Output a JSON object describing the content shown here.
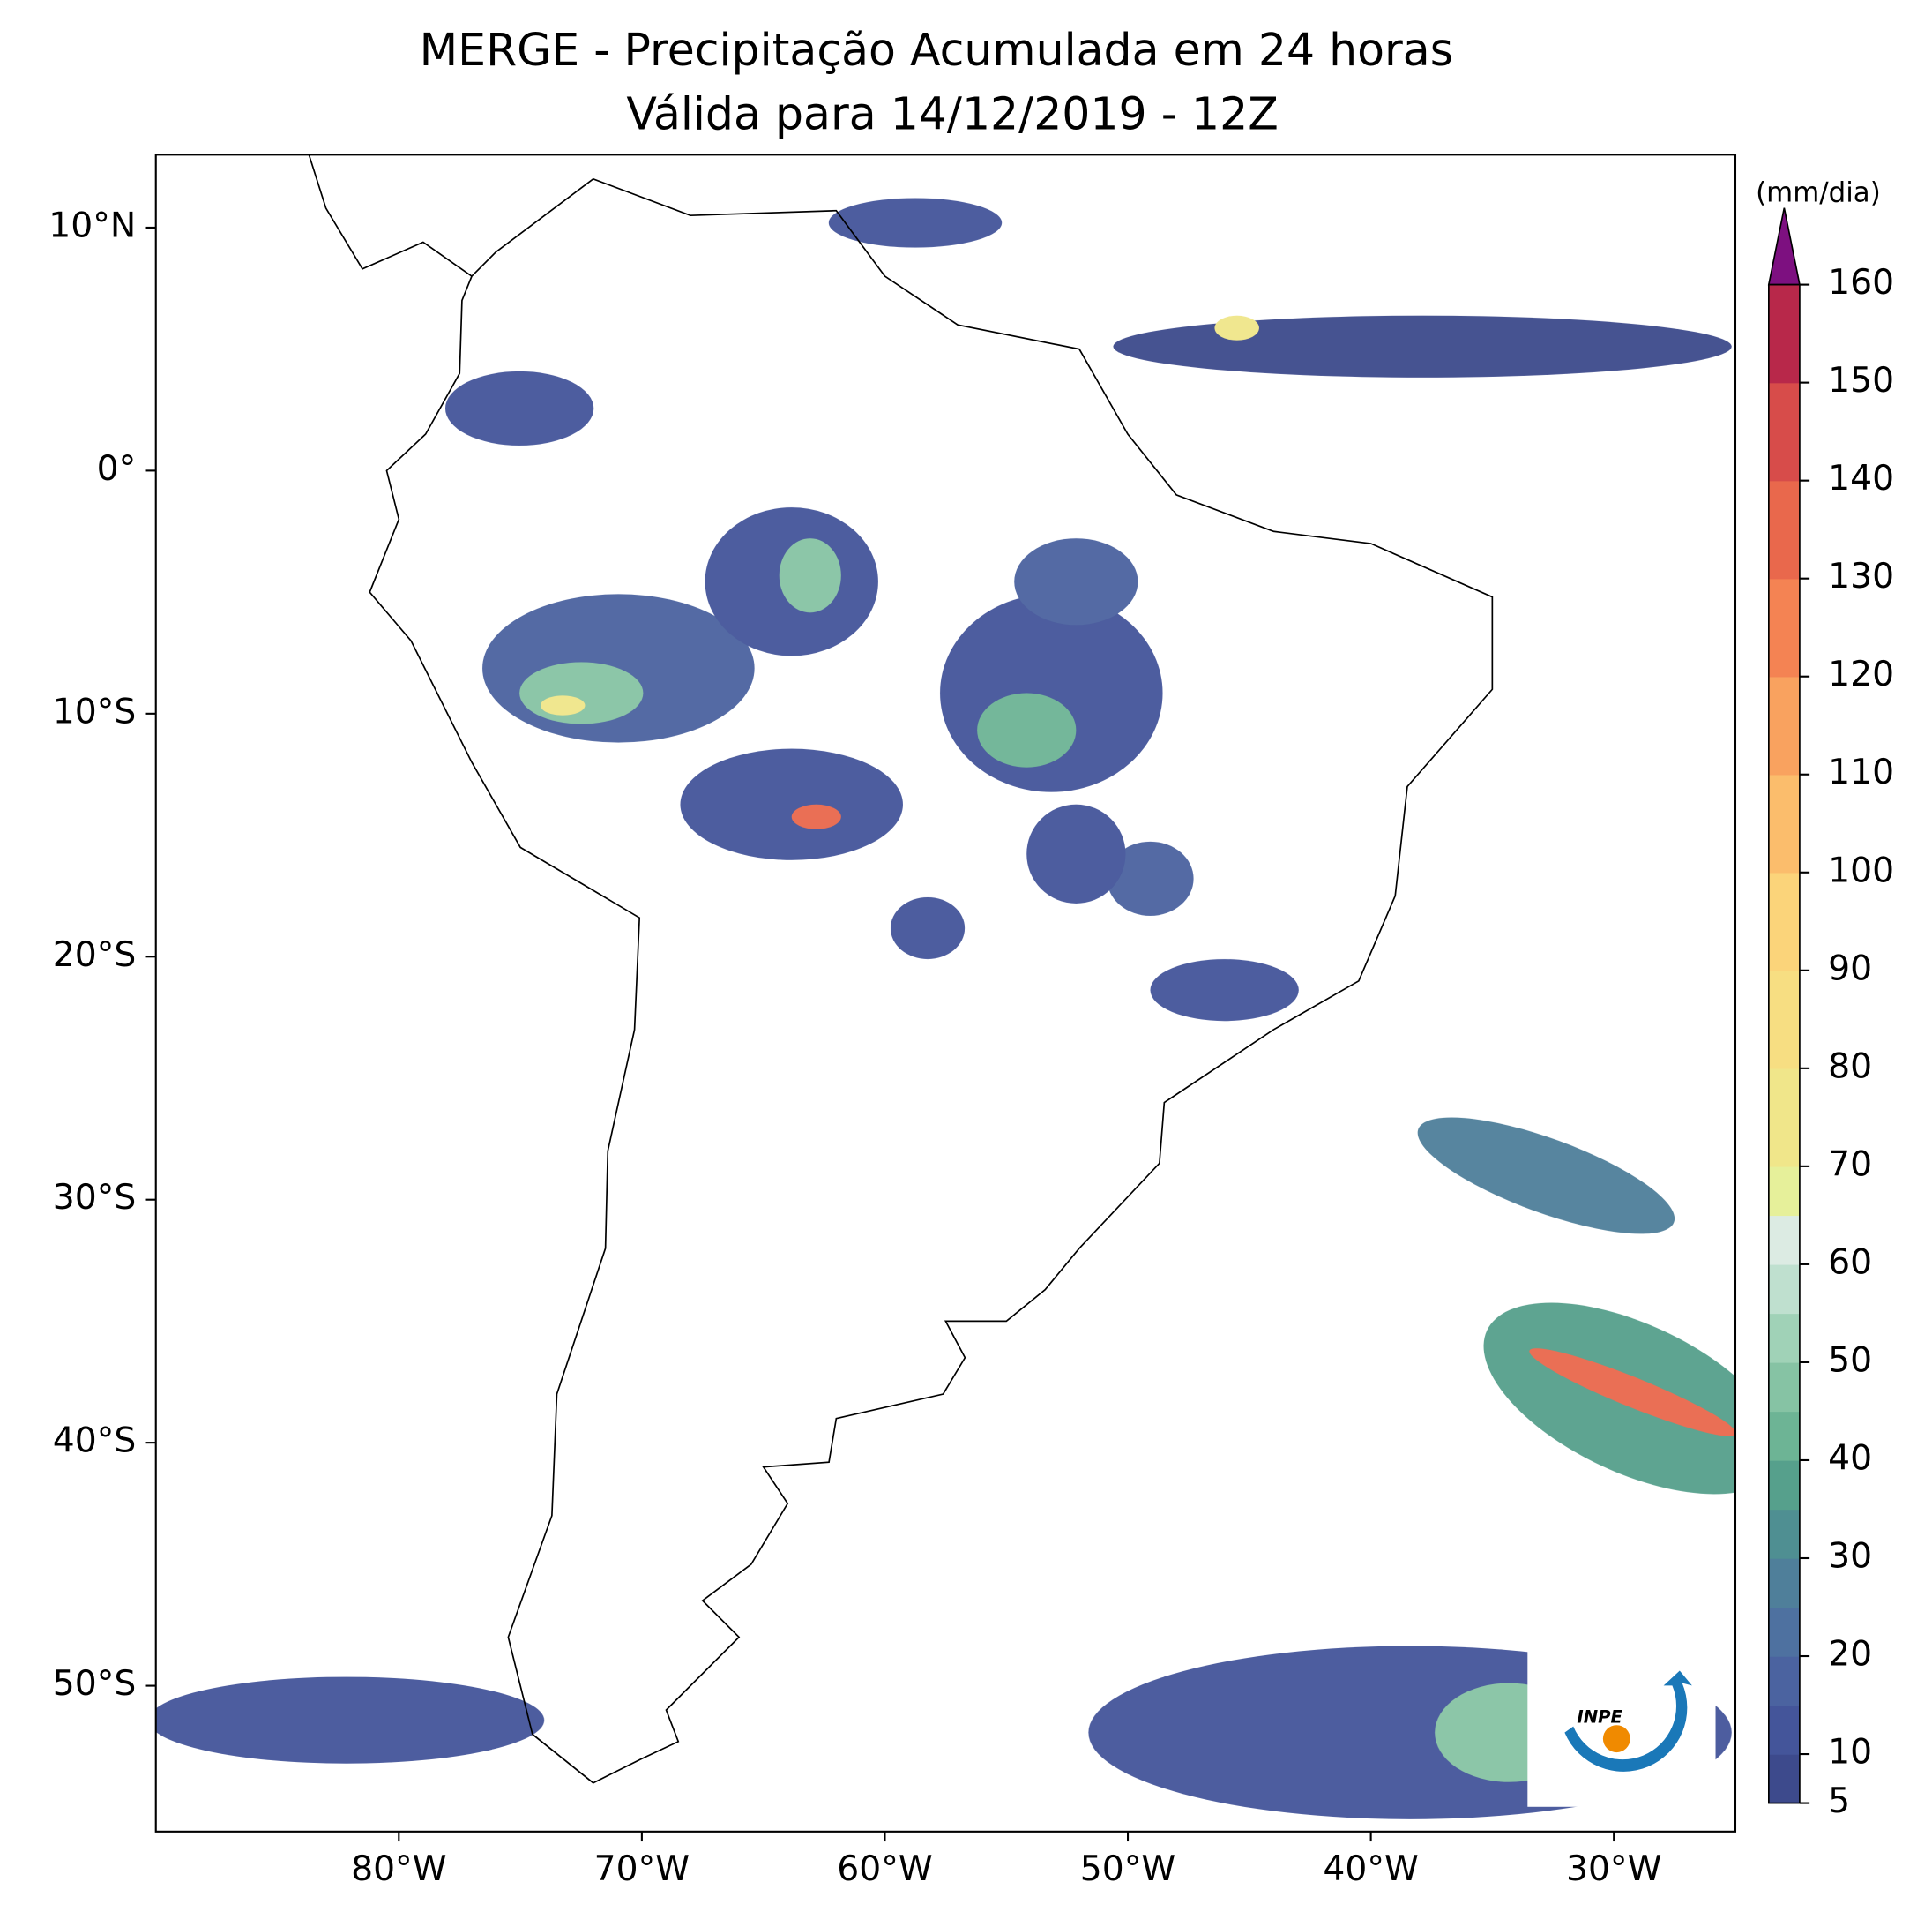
{
  "map": {
    "title": "MERGE - Precipitação Acumulada em 24 horas",
    "subtitle": "Válida para 14/12/2019 - 12Z",
    "lonlim": [
      -90,
      -25
    ],
    "latlim": [
      -56,
      13
    ],
    "lon_ticks": [
      {
        "value": -80,
        "label": "80°W"
      },
      {
        "value": -70,
        "label": "70°W"
      },
      {
        "value": -60,
        "label": "60°W"
      },
      {
        "value": -50,
        "label": "50°W"
      },
      {
        "value": -40,
        "label": "40°W"
      },
      {
        "value": -30,
        "label": "30°W"
      }
    ],
    "lat_ticks": [
      {
        "value": 10,
        "label": "10°N"
      },
      {
        "value": 0,
        "label": "0°"
      },
      {
        "value": -10,
        "label": "10°S"
      },
      {
        "value": -20,
        "label": "20°S"
      },
      {
        "value": -30,
        "label": "30°S"
      },
      {
        "value": -40,
        "label": "40°S"
      },
      {
        "value": -50,
        "label": "50°S"
      }
    ]
  },
  "colorbar": {
    "label": "(mm/dia)",
    "lim": [
      5,
      160
    ],
    "ticks": [
      5,
      10,
      20,
      30,
      40,
      50,
      60,
      70,
      80,
      90,
      100,
      110,
      120,
      130,
      140,
      150,
      160
    ],
    "levels": [
      5,
      10,
      15,
      20,
      25,
      30,
      35,
      40,
      45,
      50,
      55,
      60,
      65,
      70,
      80,
      90,
      100,
      110,
      120,
      130,
      140,
      150,
      160
    ],
    "colors": [
      "#3d4a8c",
      "#44559a",
      "#4b63a0",
      "#4e71a0",
      "#4f7f9a",
      "#4f8f92",
      "#56a08c",
      "#6db495",
      "#86c3a4",
      "#a0d2b7",
      "#bfe0cf",
      "#dcebe3",
      "#e6f09a",
      "#f0e68a",
      "#f7de82",
      "#fbd47a",
      "#fbbd6c",
      "#f9a25f",
      "#f48353",
      "#e9684c",
      "#d74c4a",
      "#b8284a"
    ],
    "extend_color": "#7d1080"
  },
  "logo": {
    "text": "INPE"
  }
}
